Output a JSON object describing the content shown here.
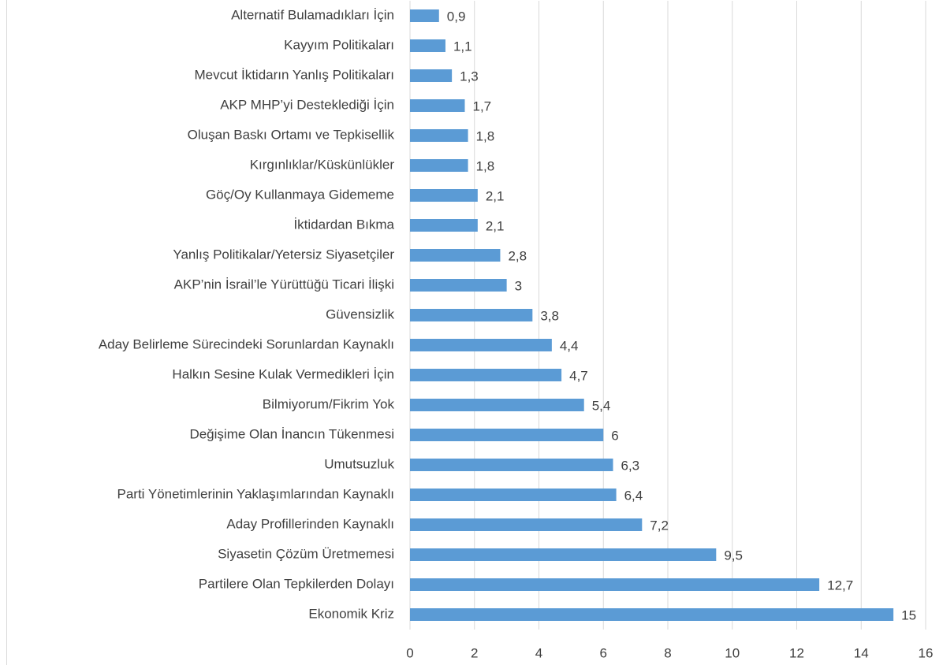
{
  "chart_data": {
    "type": "bar",
    "orientation": "horizontal",
    "categories": [
      "Alternatif Bulamadıkları İçin",
      "Kayyım Politikaları",
      "Mevcut İktidarın Yanlış Politikaları",
      "AKP MHP’yi Desteklediği İçin",
      "Oluşan Baskı Ortamı ve Tepkisellik",
      "Kırgınlıklar/Küskünlükler",
      "Göç/Oy Kullanmaya Gidememe",
      "İktidardan Bıkma",
      "Yanlış Politikalar/Yetersiz Siyasetçiler",
      "AKP’nin İsrail’le Yürüttüğü Ticari İlişki",
      "Güvensizlik",
      "Aday Belirleme Sürecindeki Sorunlardan Kaynaklı",
      "Halkın Sesine Kulak Vermedikleri İçin",
      "Bilmiyorum/Fikrim Yok",
      "Değişime Olan İnancın Tükenmesi",
      "Umutsuzluk",
      "Parti Yönetimlerinin Yaklaşımlarından Kaynaklı",
      "Aday Profillerinden Kaynaklı",
      "Siyasetin Çözüm Üretmemesi",
      "Partilere Olan Tepkilerden Dolayı",
      "Ekonomik Kriz"
    ],
    "values": [
      0.9,
      1.1,
      1.3,
      1.7,
      1.8,
      1.8,
      2.1,
      2.1,
      2.8,
      3,
      3.8,
      4.4,
      4.7,
      5.4,
      6,
      6.3,
      6.4,
      7.2,
      9.5,
      12.7,
      15
    ],
    "value_labels": [
      "0,9",
      "1,1",
      "1,3",
      "1,7",
      "1,8",
      "1,8",
      "2,1",
      "2,1",
      "2,8",
      "3",
      "3,8",
      "4,4",
      "4,7",
      "5,4",
      "6",
      "6,3",
      "6,4",
      "7,2",
      "9,5",
      "12,7",
      "15"
    ],
    "color": "#5b9bd5",
    "xlim": [
      0,
      16
    ],
    "xticks": [
      0,
      2,
      4,
      6,
      8,
      10,
      12,
      14,
      16
    ],
    "grid": true
  }
}
